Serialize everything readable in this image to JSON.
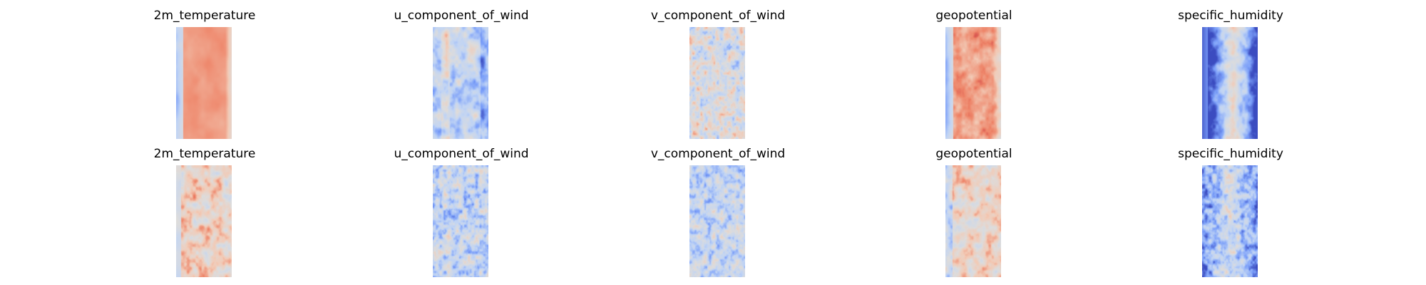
{
  "chart_data": {
    "type": "heatmap",
    "colormap": "coolwarm",
    "colormap_stops": [
      "#3b4cc0",
      "#7b9ff9",
      "#c0d4f5",
      "#dddcdc",
      "#f2cbb7",
      "#ee8468",
      "#b40426"
    ],
    "axes_visible": false,
    "grid": false,
    "rows": [
      {
        "panels": [
          {
            "title": "2m_temperature",
            "pattern": "warm_band"
          },
          {
            "title": "u_component_of_wind",
            "pattern": "cool_streaks"
          },
          {
            "title": "v_component_of_wind",
            "pattern": "neutral_swirl"
          },
          {
            "title": "geopotential",
            "pattern": "warm_band_strong"
          },
          {
            "title": "specific_humidity",
            "pattern": "cool_edges_warm_core"
          }
        ]
      },
      {
        "panels": [
          {
            "title": "2m_temperature",
            "pattern": "warm_mottled"
          },
          {
            "title": "u_component_of_wind",
            "pattern": "cool_speckled"
          },
          {
            "title": "v_component_of_wind",
            "pattern": "cool_swirl"
          },
          {
            "title": "geopotential",
            "pattern": "warm_mottled_light"
          },
          {
            "title": "specific_humidity",
            "pattern": "cool_core_speckled"
          }
        ]
      }
    ]
  }
}
